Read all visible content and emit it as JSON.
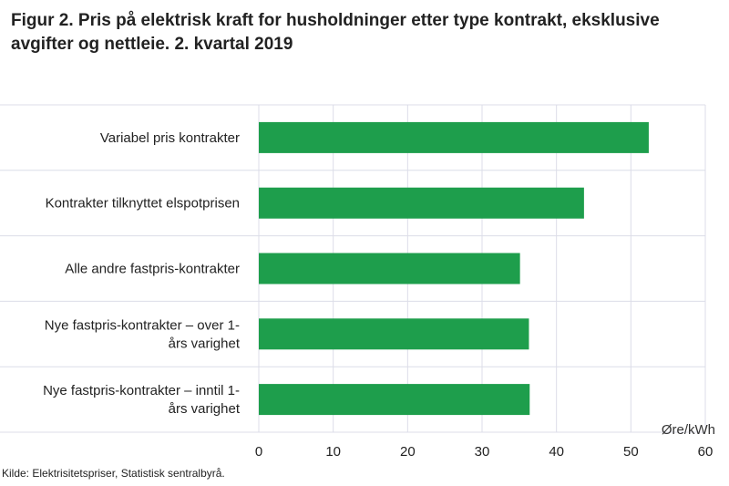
{
  "chart_data": {
    "type": "bar",
    "orientation": "horizontal",
    "title": "Figur 2. Pris på elektrisk kraft for husholdninger etter type kontrakt, eksklusive avgifter og nettleie. 2. kvartal 2019",
    "xlabel": "Øre/kWh",
    "ylabel": "",
    "categories": [
      "Variabel pris kontrakter",
      "Kontrakter tilknyttet elspotprisen",
      "Alle andre fastpris-kontrakter",
      "Nye fastpris-kontrakter – over 1-års varighet",
      "Nye fastpris-kontrakter – inntil 1-års varighet"
    ],
    "category_lines": [
      [
        "Variabel pris kontrakter"
      ],
      [
        "Kontrakter tilknyttet elspotprisen"
      ],
      [
        "Alle andre fastpris-kontrakter"
      ],
      [
        "Nye fastpris-kontrakter – over 1-",
        "års varighet"
      ],
      [
        "Nye fastpris-kontrakter – inntil 1-",
        "års varighet"
      ]
    ],
    "values": [
      52.4,
      43.7,
      35.1,
      36.3,
      36.4
    ],
    "xlim": [
      0,
      60
    ],
    "xticks": [
      0,
      10,
      20,
      30,
      40,
      50,
      60
    ],
    "grid": true,
    "legend": "none",
    "bar_color": "#1e9e4c",
    "grid_color": "#dcdde8"
  },
  "source": "Kilde: Elektrisitetspriser, Statistisk sentralbyrå."
}
